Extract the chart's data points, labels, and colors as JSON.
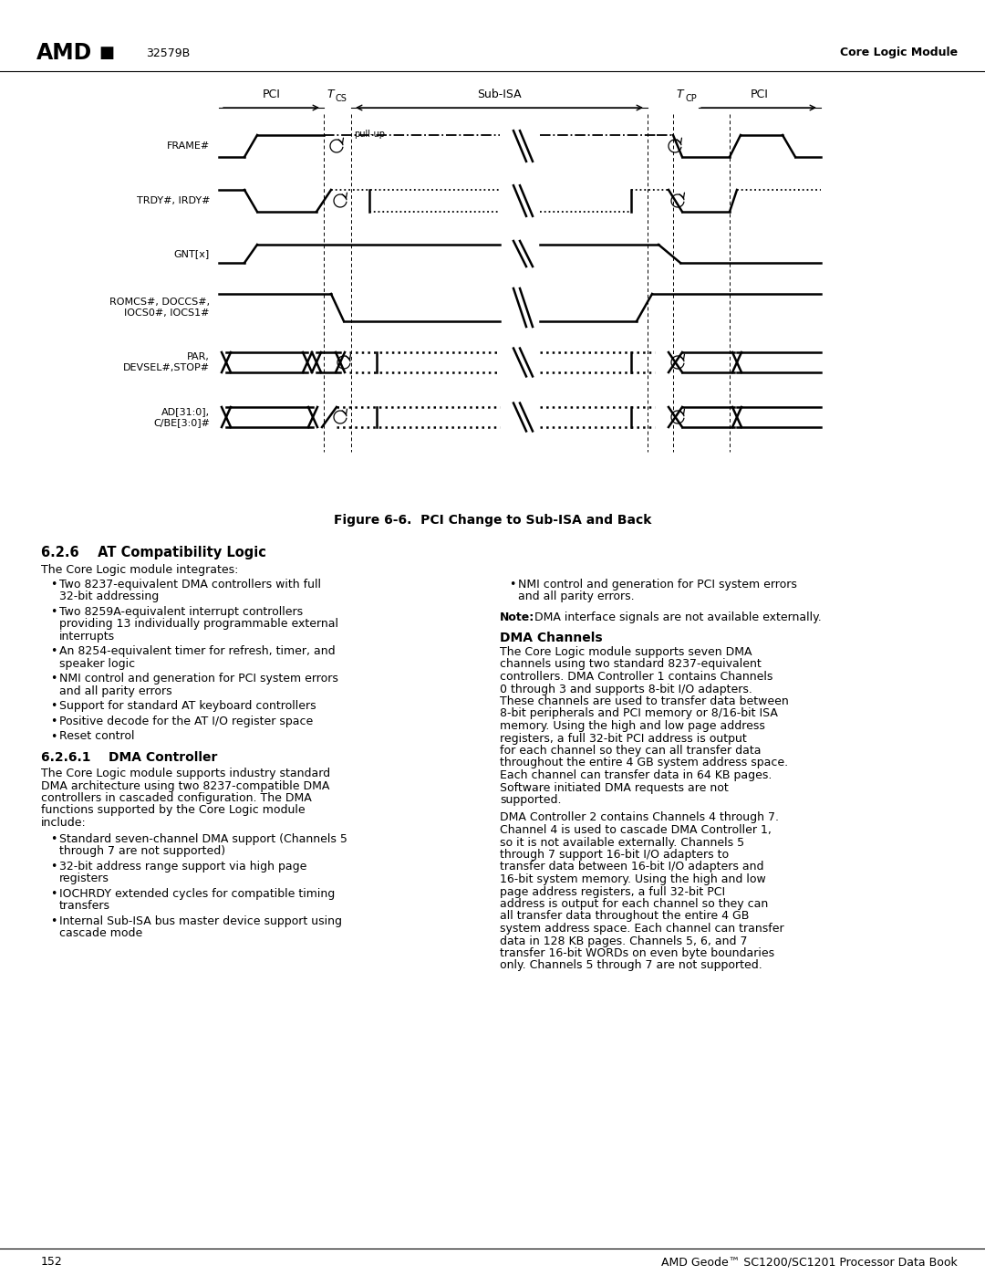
{
  "page_num": "152",
  "doc_num": "32579B",
  "header_right": "Core Logic Module",
  "footer_right": "AMD Geode™ SC1200/SC1201 Processor Data Book",
  "figure_caption": "Figure 6-6.  PCI Change to Sub-ISA and Back",
  "section_title": "6.2.6    AT Compatibility Logic",
  "section_intro": "The Core Logic module integrates:",
  "bullets_left": [
    "Two 8237-equivalent DMA controllers with full 32-bit addressing",
    "Two 8259A-equivalent interrupt controllers providing 13 individually programmable external interrupts",
    "An 8254-equivalent timer for refresh, timer, and speaker logic",
    "NMI control and generation for PCI system errors and all parity errors",
    "Support for standard AT keyboard controllers",
    "Positive decode for the AT I/O register space",
    "Reset control"
  ],
  "subsection_title": "6.2.6.1    DMA Controller",
  "subsection_intro": "The Core Logic module supports industry standard DMA architecture using two 8237-compatible DMA controllers in cascaded configuration. The DMA functions supported by the Core Logic module include:",
  "bullets_left2": [
    "Standard seven-channel DMA support (Channels 5 through 7 are not supported)",
    "32-bit address range support via high page registers",
    "IOCHRDY extended cycles for compatible timing transfers",
    "Internal Sub-ISA bus master device support using cascade mode"
  ],
  "bullets_right": [
    "NMI control and generation for PCI system errors and all parity errors."
  ],
  "note_label": "Note:",
  "note_text": "DMA interface signals are not available externally.",
  "dma_channels_title": "DMA Channels",
  "dma_channels_text1": "The Core Logic module supports seven DMA channels using two standard 8237-equivalent controllers. DMA Controller 1 contains Channels 0 through 3 and supports 8-bit I/O adapters. These channels are used to transfer data between 8-bit peripherals and PCI memory or 8/16-bit ISA memory. Using the high and low page address registers, a full 32-bit PCI address is output for each channel so they can all transfer data throughout the entire 4 GB system address space. Each channel can transfer data in 64 KB pages. Software initiated DMA requests are not supported.",
  "dma_channels_text2": "DMA Controller 2 contains Channels 4 through 7. Channel 4 is used to cascade DMA Controller 1, so it is not available externally. Channels 5 through 7 support 16-bit I/O adapters to transfer data between 16-bit I/O adapters and 16-bit system memory. Using the high and low page address registers, a full 32-bit PCI address is output for each channel so they can all transfer data throughout the entire 4 GB system address space. Each channel can transfer data in 128 KB pages. Channels 5, 6, and 7 transfer 16-bit WORDs on even byte boundaries only. Channels 5 through 7 are not supported.",
  "signal_labels": [
    "FRAME#",
    "TRDY#, IRDY#",
    "GNT[x]",
    "ROMCS#, DOCCS#,\nIOCS0#, IOCS1#",
    "PAR,\nDEVSEL#,STOP#",
    "AD[31:0],\nC/BE[3:0]#"
  ],
  "bg_color": "#ffffff",
  "text_color": "#000000"
}
